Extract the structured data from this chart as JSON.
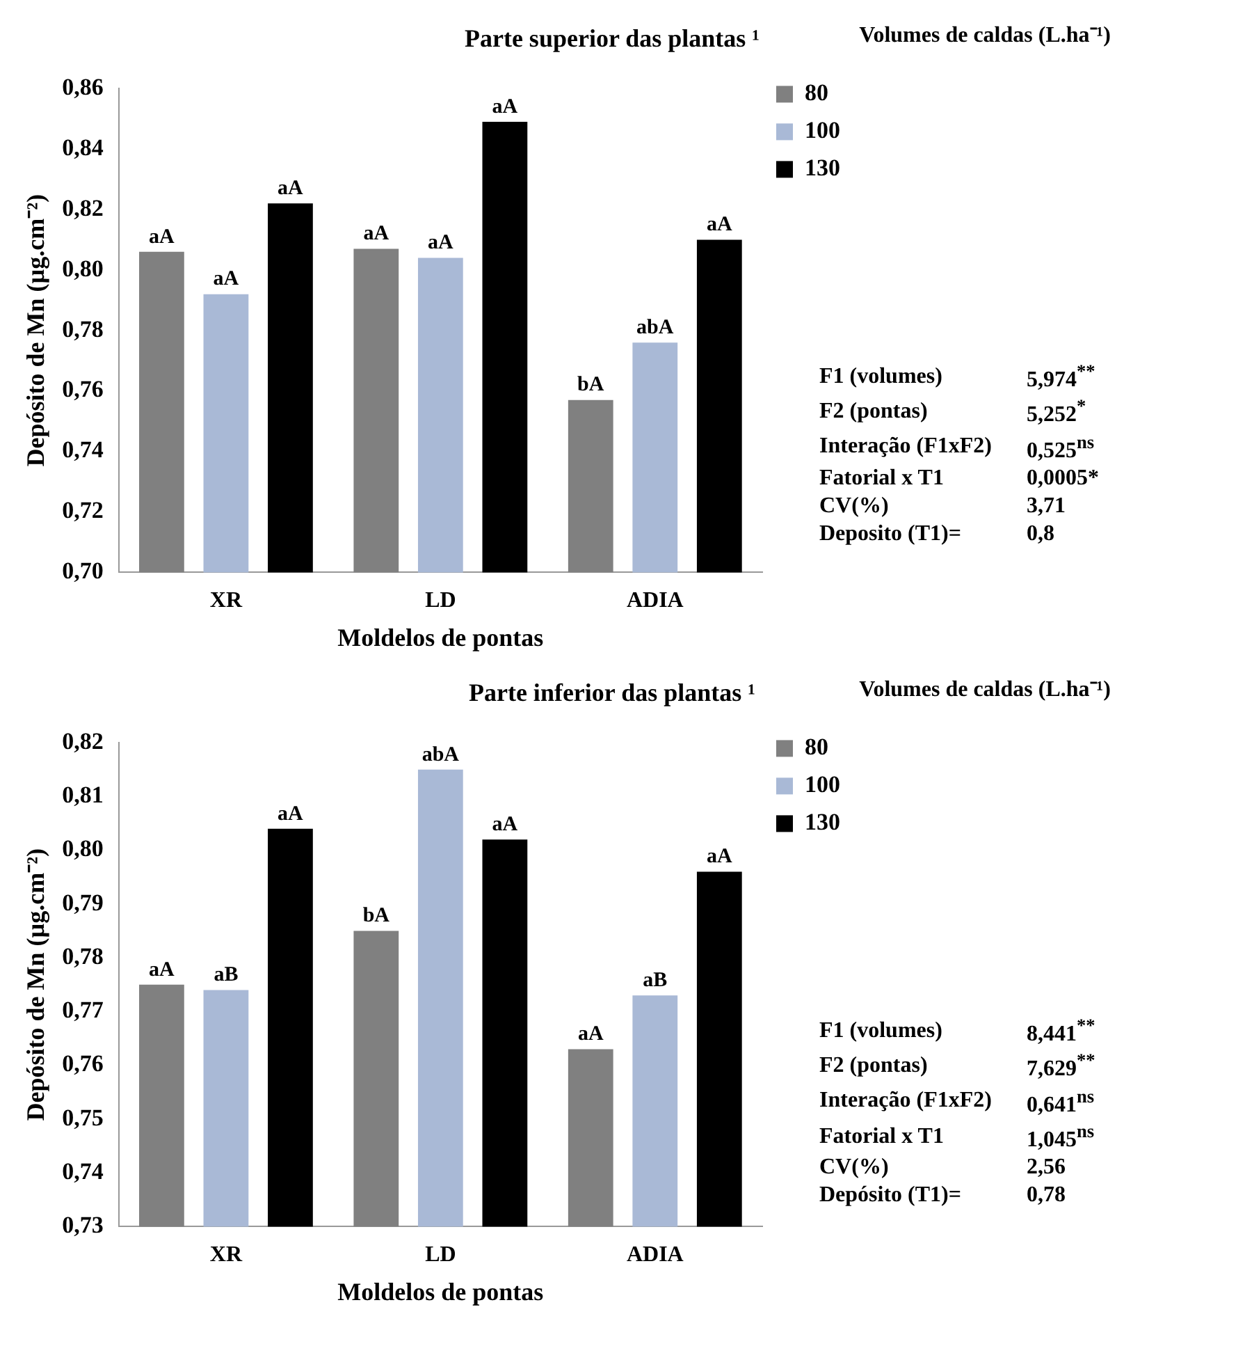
{
  "chart_data": [
    {
      "type": "bar",
      "title": "Parte superior das plantas ¹",
      "xlabel": "Moldelos de pontas",
      "ylabel": "Depósito de Mn (µg.cm⁻²)",
      "legend_title": "Volumes de caldas (L.ha⁻¹)",
      "categories": [
        "XR",
        "LD",
        "ADIA"
      ],
      "series": [
        {
          "name": "80",
          "color": "#808080",
          "values": [
            0.806,
            0.807,
            0.757
          ],
          "value_labels": [
            "aA",
            "aA",
            "bA"
          ]
        },
        {
          "name": "100",
          "color": "#a9b9d6",
          "values": [
            0.792,
            0.804,
            0.776
          ],
          "value_labels": [
            "aA",
            "aA",
            "abA"
          ]
        },
        {
          "name": "130",
          "color": "#000000",
          "values": [
            0.822,
            0.849,
            0.81
          ],
          "value_labels": [
            "aA",
            "aA",
            "aA"
          ]
        }
      ],
      "ylim": [
        0.7,
        0.86
      ],
      "yticks": [
        {
          "value": 0.7,
          "label": "0,70"
        },
        {
          "value": 0.72,
          "label": "0,72"
        },
        {
          "value": 0.74,
          "label": "0,74"
        },
        {
          "value": 0.76,
          "label": "0,76"
        },
        {
          "value": 0.78,
          "label": "0,78"
        },
        {
          "value": 0.8,
          "label": "0,80"
        },
        {
          "value": 0.82,
          "label": "0,82"
        },
        {
          "value": 0.84,
          "label": "0,84"
        },
        {
          "value": 0.86,
          "label": "0,86"
        }
      ],
      "grid": false,
      "legend": "right",
      "annotations": [
        "F1 (volumes)",
        "5,974$^{**}$",
        "F2 (pontas)",
        "5,252$^{*}$",
        "Interação (F1xF2)",
        "0,525$^{ns}$",
        "Fatorial x T1",
        "0,0005*",
        "CV(%)",
        "3,71",
        "Deposito (T1)=",
        "0,8"
      ]
    },
    {
      "type": "bar",
      "title": "Parte inferior das plantas ¹",
      "xlabel": "Moldelos de pontas",
      "ylabel": "Depósito de Mn (µg.cm⁻²)",
      "legend_title": "Volumes de caldas (L.ha⁻¹)",
      "categories": [
        "XR",
        "LD",
        "ADIA"
      ],
      "series": [
        {
          "name": "80",
          "color": "#808080",
          "values": [
            0.775,
            0.785,
            0.763
          ],
          "value_labels": [
            "aA",
            "bA",
            "aA"
          ]
        },
        {
          "name": "100",
          "color": "#a9b9d6",
          "values": [
            0.774,
            0.815,
            0.773
          ],
          "value_labels": [
            "aB",
            "abA",
            "aB"
          ]
        },
        {
          "name": "130",
          "color": "#000000",
          "values": [
            0.804,
            0.802,
            0.796
          ],
          "value_labels": [
            "aA",
            "aA",
            "aA"
          ]
        }
      ],
      "ylim": [
        0.73,
        0.82
      ],
      "yticks": [
        {
          "value": 0.73,
          "label": "0,73"
        },
        {
          "value": 0.74,
          "label": "0,74"
        },
        {
          "value": 0.75,
          "label": "0,75"
        },
        {
          "value": 0.76,
          "label": "0,76"
        },
        {
          "value": 0.77,
          "label": "0,77"
        },
        {
          "value": 0.78,
          "label": "0,78"
        },
        {
          "value": 0.79,
          "label": "0,79"
        },
        {
          "value": 0.8,
          "label": "0,80"
        },
        {
          "value": 0.81,
          "label": "0,81"
        },
        {
          "value": 0.82,
          "label": "0,82"
        }
      ],
      "grid": false,
      "legend": "right",
      "annotations": [
        "F1 (volumes)",
        "8,441$^{**}$",
        "F2 (pontas)",
        "7,629$^{**}$",
        "Interação (F1xF2)",
        "0,641$^{ns}$",
        "Fatorial x T1",
        "1,045$^{ns}$",
        "CV(%)",
        "2,56",
        "Depósito (T1)=",
        "0,78"
      ]
    }
  ]
}
